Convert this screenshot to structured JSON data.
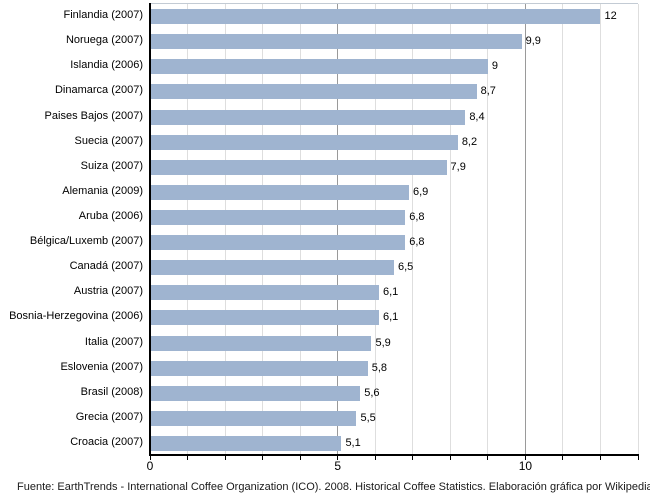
{
  "page": {
    "background": "#ffffff"
  },
  "footer": {
    "text": "Fuente: EarthTrends - International Coffee Organization (ICO). 2008. Historical Coffee Statistics. Elaboración gráfica por Wikipedia"
  },
  "chart_data": {
    "type": "bar",
    "orientation": "horizontal",
    "title": "",
    "xlabel": "",
    "ylabel": "",
    "categories": [
      "Finlandia (2007)",
      "Noruega (2007)",
      "Islandia (2006)",
      "Dinamarca (2007)",
      "Paises Bajos (2007)",
      "Suecia (2007)",
      "Suiza (2007)",
      "Alemania (2009)",
      "Aruba (2006)",
      "Bélgica/Luxemb (2007)",
      "Canadá (2007)",
      "Austria (2007)",
      "Bosnia-Herzegovina (2006)",
      "Italia (2007)",
      "Eslovenia (2007)",
      "Brasil (2008)",
      "Grecia (2007)",
      "Croacia (2007)"
    ],
    "values": [
      12,
      9.9,
      9,
      8.7,
      8.4,
      8.2,
      7.9,
      6.9,
      6.8,
      6.8,
      6.5,
      6.1,
      6.1,
      5.9,
      5.8,
      5.6,
      5.5,
      5.1
    ],
    "value_labels": [
      "12",
      "9,9",
      "9",
      "8,7",
      "8,4",
      "8,2",
      "7,9",
      "6,9",
      "6,8",
      "6,8",
      "6,5",
      "6,1",
      "6,1",
      "5,9",
      "5,8",
      "5,6",
      "5,5",
      "5,1"
    ],
    "xlim": [
      0,
      13
    ],
    "x_major_ticks": [
      0,
      5,
      10
    ],
    "x_major_tick_labels": [
      "0",
      "5",
      "10"
    ],
    "x_minor_tick_step": 1,
    "grid": {
      "show": true,
      "minor_color": "#dedede",
      "major_color": "#9a9a9a"
    },
    "colors": {
      "bar_fill": "#9fb4d0",
      "axis": "#000000",
      "plot_top_border": "#c3cbd4"
    },
    "legend": null
  }
}
